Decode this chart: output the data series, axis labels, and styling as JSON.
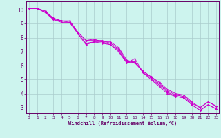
{
  "xlabel": "Windchill (Refroidissement éolien,°C)",
  "background_color": "#cdf4ee",
  "grid_color": "#aacccc",
  "line_color": "#cc00cc",
  "spine_color": "#660066",
  "x_ticks": [
    0,
    1,
    2,
    3,
    4,
    5,
    6,
    7,
    8,
    9,
    10,
    11,
    12,
    13,
    14,
    15,
    16,
    17,
    18,
    19,
    20,
    21,
    22,
    23
  ],
  "y_ticks": [
    3,
    4,
    5,
    6,
    7,
    8,
    9,
    10
  ],
  "xlim": [
    -0.3,
    23.3
  ],
  "ylim": [
    2.6,
    10.6
  ],
  "lines": [
    [
      10.1,
      10.1,
      9.9,
      9.3,
      9.2,
      9.1,
      8.3,
      7.5,
      7.7,
      7.7,
      7.5,
      7.0,
      6.2,
      6.5,
      5.5,
      5.0,
      4.5,
      4.0,
      3.8,
      3.7,
      3.2,
      2.8,
      3.2,
      2.9
    ],
    [
      10.1,
      10.1,
      9.9,
      9.4,
      9.2,
      9.2,
      8.4,
      7.8,
      7.8,
      7.8,
      7.6,
      7.2,
      6.3,
      6.2,
      5.6,
      5.2,
      4.7,
      4.2,
      3.9,
      3.8,
      3.3,
      3.0,
      3.4,
      3.1
    ],
    [
      10.1,
      10.1,
      9.8,
      9.3,
      9.1,
      9.1,
      8.3,
      7.6,
      7.7,
      7.6,
      7.5,
      7.1,
      6.2,
      6.3,
      5.5,
      5.1,
      4.6,
      4.1,
      3.8,
      3.7,
      3.2,
      2.8,
      3.2,
      2.9
    ],
    [
      10.1,
      10.1,
      9.8,
      9.4,
      9.2,
      9.2,
      8.4,
      7.8,
      7.9,
      7.7,
      7.7,
      7.3,
      6.4,
      6.2,
      5.6,
      5.2,
      4.8,
      4.3,
      4.0,
      3.9,
      3.4,
      3.0,
      3.4,
      3.1
    ]
  ]
}
